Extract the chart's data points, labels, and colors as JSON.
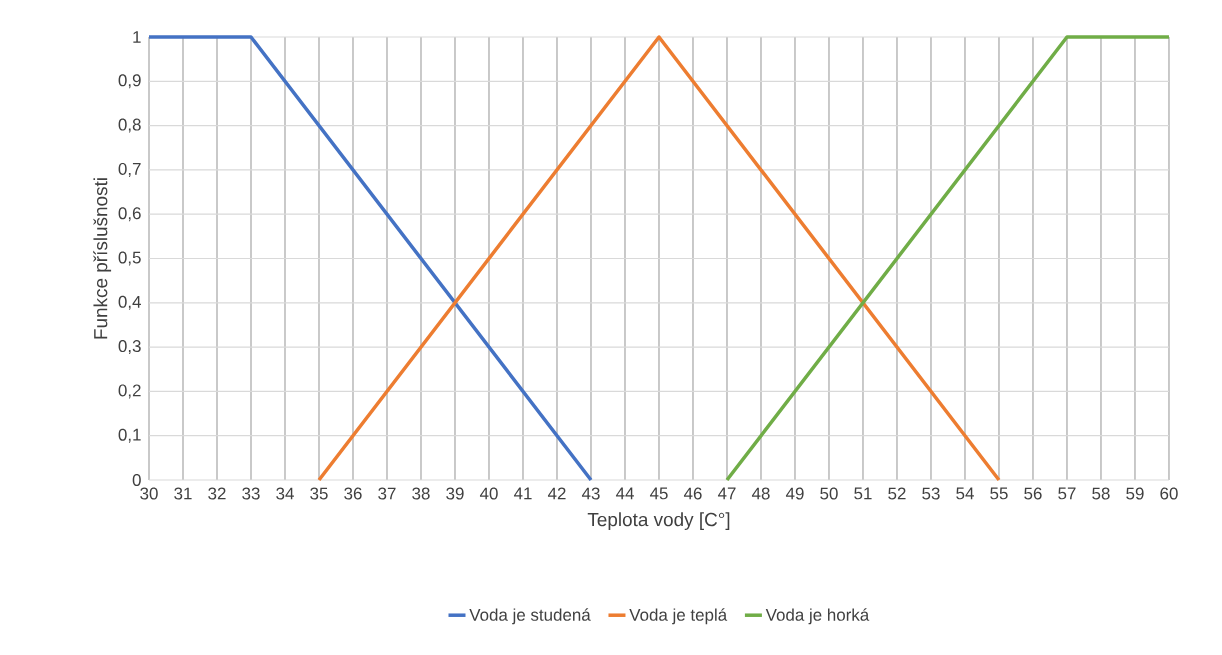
{
  "chart_data": {
    "type": "line",
    "xlabel": "Teplota vody [C°]",
    "ylabel": "Funkce příslušnosti",
    "xlim": [
      30,
      60
    ],
    "xticks": [
      30,
      31,
      32,
      33,
      34,
      35,
      36,
      37,
      38,
      39,
      40,
      41,
      42,
      43,
      44,
      45,
      46,
      47,
      48,
      49,
      50,
      51,
      52,
      53,
      54,
      55,
      56,
      57,
      58,
      59,
      60
    ],
    "ylim": [
      0,
      1
    ],
    "yticks": [
      0,
      {
        "value": 0.1,
        "label": "0,1"
      },
      {
        "value": 0.2,
        "label": "0,2"
      },
      {
        "value": 0.3,
        "label": "0,3"
      },
      {
        "value": 0.4,
        "label": "0,4"
      },
      {
        "value": 0.5,
        "label": "0,5"
      },
      {
        "value": 0.6,
        "label": "0,6"
      },
      {
        "value": 0.7,
        "label": "0,7"
      },
      {
        "value": 0.8,
        "label": "0,8"
      },
      {
        "value": 0.9,
        "label": "0,9"
      },
      1
    ],
    "grid": true,
    "legend": "bottom",
    "series": [
      {
        "name": "Voda je studená",
        "color": "#4472c4",
        "x": [
          30,
          33,
          43
        ],
        "values": [
          1,
          1,
          0
        ]
      },
      {
        "name": "Voda je teplá",
        "color": "#ed7d31",
        "x": [
          35,
          45,
          55
        ],
        "values": [
          0,
          1,
          0
        ]
      },
      {
        "name": "Voda je horká",
        "color": "#70ad47",
        "x": [
          47,
          57,
          60
        ],
        "values": [
          0,
          1,
          1
        ]
      }
    ]
  }
}
